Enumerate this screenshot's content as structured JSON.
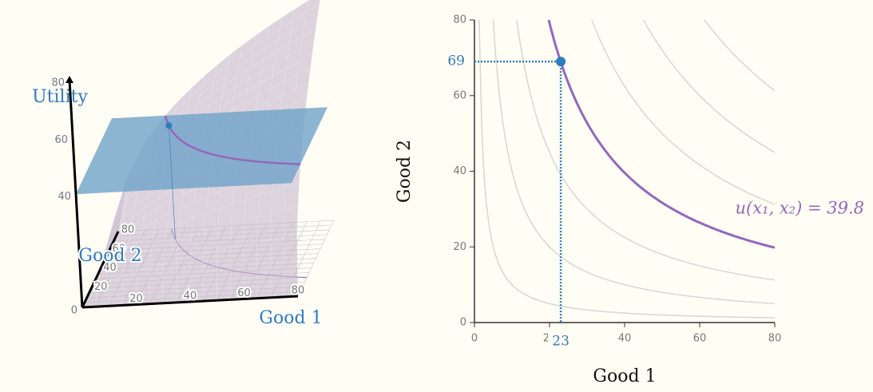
{
  "chart_data": [
    {
      "type": "surface3d",
      "xlabel": "Good 1",
      "ylabel": "Good 2",
      "zlabel": "Utility",
      "xlim": [
        0,
        80
      ],
      "ylim": [
        0,
        80
      ],
      "zlim": [
        0,
        80
      ],
      "xticks": [
        20,
        40,
        60,
        80
      ],
      "yticks": [
        20,
        40,
        60,
        80
      ],
      "zticks": [
        0,
        40,
        60,
        80
      ],
      "level": 39.8,
      "point": {
        "x": 23,
        "y": 69
      },
      "surface_color": "#bfb0c8",
      "plane_color": "#6fa3c8",
      "curve_color": "#9467bd",
      "point_color": "#2f7bbf"
    },
    {
      "type": "contour",
      "xlabel": "Good 1",
      "ylabel": "Good 2",
      "xlim": [
        0,
        80
      ],
      "ylim": [
        0,
        80
      ],
      "xticks": [
        0,
        20,
        40,
        60,
        80
      ],
      "yticks": [
        0,
        20,
        40,
        60,
        80
      ],
      "levels": [
        10,
        20,
        30,
        50,
        60,
        70
      ],
      "level_color": "#d6d6d6",
      "highlight": {
        "value": 39.8,
        "label": "u(x₁, x₂) = 39.8"
      },
      "highlight_color": "#9467bd",
      "point": {
        "x": 23,
        "y": 69
      },
      "point_color": "#2f7bbf"
    }
  ]
}
